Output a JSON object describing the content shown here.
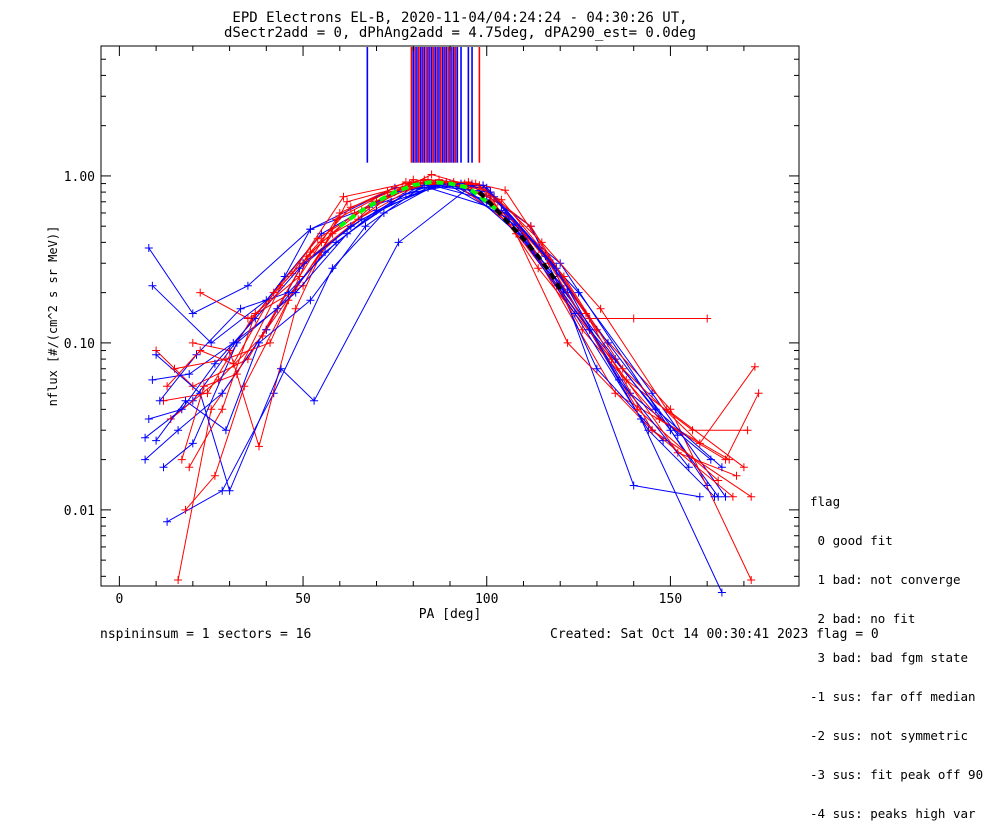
{
  "title_line1": "EPD Electrons EL-B, 2020-11-04/04:24:24 - 04:30:26 UT,",
  "title_line2": "dSectr2add = 0, dPhAng2add = 4.75deg, dPA290_est=   0.0deg",
  "footer_left": "nspininsum =  1  sectors = 16",
  "footer_right": "Created: Sat Oct 14 00:30:41 2023   flag = 0",
  "flag_legend": {
    "title": "flag",
    "items": [
      " 0 good fit",
      " 1 bad: not converge",
      " 2 bad: no fit",
      " 3 bad: bad fgm state",
      "-1 sus: far off median",
      "-2 sus: not symmetric",
      "-3 sus: fit peak off 90",
      "-4 sus: peaks high var"
    ]
  },
  "colors": {
    "red": "#ff0000",
    "blue": "#0000ff",
    "green": "#00ff00",
    "black": "#000000",
    "purple": "#8b008b"
  },
  "chart_data": {
    "type": "line",
    "xlabel": "PA [deg]",
    "ylabel": "nflux [#/(cm^2 s sr MeV)]",
    "xlim": [
      -5,
      185
    ],
    "ylim": [
      0.0035,
      6.0
    ],
    "yscale": "log",
    "xticks": [
      0,
      50,
      100,
      150
    ],
    "xtick_labels": [
      "0",
      "50",
      "100",
      "150"
    ],
    "yticks": [
      0.01,
      0.1,
      1.0
    ],
    "ytick_labels": [
      "0.01",
      "0.10",
      "1.00"
    ],
    "peak_markers": {
      "blue_x": [
        67.5,
        80,
        81,
        82,
        83,
        84,
        85,
        86,
        87,
        88,
        89,
        90,
        91,
        92,
        93,
        95,
        96
      ],
      "red_x": [
        79.5,
        81.5,
        83.5,
        85.5,
        87.5,
        89.5,
        91.5,
        98
      ],
      "purple_x": [
        80.5,
        82.5,
        84.5,
        86.5,
        88.5,
        90.5
      ]
    },
    "fit_curves": [
      {
        "color": "green",
        "x": [
          60,
          65,
          70,
          75,
          80,
          85,
          90,
          95,
          100,
          103
        ],
        "y": [
          0.5,
          0.6,
          0.7,
          0.8,
          0.88,
          0.92,
          0.9,
          0.85,
          0.7,
          0.62
        ]
      },
      {
        "color": "black",
        "x": [
          98,
          102,
          106,
          110,
          114,
          118,
          120
        ],
        "y": [
          0.8,
          0.65,
          0.52,
          0.42,
          0.33,
          0.25,
          0.21
        ]
      }
    ],
    "sample_series": [
      {
        "color": "blue",
        "x": [
          8,
          20,
          35,
          52,
          68,
          85,
          100,
          118,
          135,
          150,
          163
        ],
        "y": [
          0.37,
          0.15,
          0.22,
          0.48,
          0.65,
          0.88,
          0.72,
          0.25,
          0.08,
          0.03,
          0.012
        ]
      },
      {
        "color": "blue",
        "x": [
          7,
          20,
          30,
          45,
          52,
          75,
          90,
          100,
          120,
          160
        ],
        "y": [
          0.027,
          0.045,
          0.09,
          0.25,
          0.48,
          0.85,
          0.9,
          0.7,
          0.3,
          0.014
        ]
      },
      {
        "color": "red",
        "x": [
          16,
          25,
          40,
          55,
          70,
          85,
          100,
          115,
          130,
          150,
          172
        ],
        "y": [
          0.0038,
          0.04,
          0.12,
          0.35,
          0.7,
          1.02,
          0.82,
          0.35,
          0.12,
          0.04,
          0.0038
        ]
      },
      {
        "color": "red",
        "x": [
          22,
          35,
          50,
          62,
          80,
          95,
          105,
          128,
          140,
          160
        ],
        "y": [
          0.2,
          0.14,
          0.22,
          0.7,
          0.9,
          0.92,
          0.82,
          0.14,
          0.14,
          0.14
        ]
      },
      {
        "color": "blue",
        "x": [
          9,
          25,
          40,
          55,
          75,
          90,
          105,
          125,
          145,
          165
        ],
        "y": [
          0.22,
          0.1,
          0.18,
          0.45,
          0.8,
          0.9,
          0.6,
          0.2,
          0.05,
          0.012
        ]
      },
      {
        "color": "red",
        "x": [
          10,
          20,
          35,
          50,
          65,
          80,
          92,
          110,
          135,
          165,
          174
        ],
        "y": [
          0.09,
          0.055,
          0.08,
          0.3,
          0.55,
          0.95,
          0.88,
          0.45,
          0.05,
          0.02,
          0.05
        ]
      },
      {
        "color": "blue",
        "x": [
          13,
          28,
          42,
          58,
          72,
          86,
          100,
          118,
          140,
          158
        ],
        "y": [
          0.0085,
          0.013,
          0.05,
          0.28,
          0.6,
          0.88,
          0.85,
          0.3,
          0.014,
          0.012
        ]
      },
      {
        "color": "red",
        "x": [
          20,
          30,
          38,
          48,
          60,
          78,
          96,
          108,
          122,
          145,
          172
        ],
        "y": [
          0.1,
          0.09,
          0.024,
          0.16,
          0.6,
          0.92,
          0.9,
          0.45,
          0.1,
          0.03,
          0.012
        ]
      },
      {
        "color": "blue",
        "x": [
          10,
          22,
          30,
          44,
          53,
          76,
          96,
          112,
          130,
          148
        ],
        "y": [
          0.085,
          0.05,
          0.013,
          0.07,
          0.045,
          0.4,
          0.88,
          0.5,
          0.07,
          0.026
        ]
      },
      {
        "color": "red",
        "x": [
          18,
          26,
          34,
          46,
          58,
          82,
          99,
          114,
          134,
          152,
          168
        ],
        "y": [
          0.01,
          0.016,
          0.055,
          0.18,
          0.45,
          0.9,
          0.87,
          0.28,
          0.08,
          0.022,
          0.016
        ]
      },
      {
        "color": "blue",
        "x": [
          7,
          16,
          28,
          40,
          50,
          66,
          84,
          104,
          122,
          142,
          164
        ],
        "y": [
          0.02,
          0.03,
          0.05,
          0.12,
          0.3,
          0.55,
          0.85,
          0.62,
          0.2,
          0.035,
          0.0032
        ]
      },
      {
        "color": "red",
        "x": [
          12,
          24,
          36,
          47,
          61,
          83,
          98,
          119,
          138,
          156,
          171
        ],
        "y": [
          0.045,
          0.05,
          0.14,
          0.26,
          0.75,
          0.95,
          0.88,
          0.22,
          0.06,
          0.03,
          0.03
        ]
      },
      {
        "color": "blue",
        "x": [
          9,
          19,
          31,
          43,
          56,
          70,
          88,
          102,
          121,
          139,
          161
        ],
        "y": [
          0.06,
          0.065,
          0.1,
          0.16,
          0.35,
          0.62,
          0.9,
          0.75,
          0.21,
          0.05,
          0.02
        ]
      },
      {
        "color": "red",
        "x": [
          14,
          27,
          39,
          51,
          64,
          79,
          94,
          109,
          126,
          147,
          166
        ],
        "y": [
          0.035,
          0.06,
          0.11,
          0.33,
          0.6,
          0.9,
          0.9,
          0.5,
          0.12,
          0.035,
          0.02
        ]
      },
      {
        "color": "blue",
        "x": [
          11,
          21,
          33,
          46,
          59,
          74,
          89,
          106,
          124,
          144,
          162
        ],
        "y": [
          0.045,
          0.085,
          0.16,
          0.2,
          0.4,
          0.7,
          0.9,
          0.55,
          0.15,
          0.03,
          0.012
        ]
      },
      {
        "color": "red",
        "x": [
          15,
          29,
          41,
          52,
          63,
          77,
          91,
          103,
          117,
          141,
          163
        ],
        "y": [
          0.07,
          0.08,
          0.1,
          0.35,
          0.65,
          0.85,
          0.92,
          0.7,
          0.3,
          0.04,
          0.015
        ]
      },
      {
        "color": "blue",
        "x": [
          8,
          17,
          26,
          37,
          49,
          63,
          81,
          99,
          116,
          133,
          152
        ],
        "y": [
          0.035,
          0.04,
          0.075,
          0.14,
          0.28,
          0.5,
          0.85,
          0.88,
          0.33,
          0.1,
          0.028
        ]
      },
      {
        "color": "red",
        "x": [
          17,
          23,
          32,
          44,
          55,
          69,
          87,
          101,
          115,
          131,
          149,
          170
        ],
        "y": [
          0.02,
          0.055,
          0.065,
          0.22,
          0.4,
          0.7,
          0.95,
          0.8,
          0.4,
          0.16,
          0.04,
          0.018
        ]
      },
      {
        "color": "blue",
        "x": [
          12,
          20,
          32,
          48,
          62,
          78,
          93,
          110,
          128,
          146,
          164
        ],
        "y": [
          0.018,
          0.025,
          0.1,
          0.2,
          0.45,
          0.78,
          0.9,
          0.42,
          0.12,
          0.04,
          0.018
        ]
      },
      {
        "color": "red",
        "x": [
          19,
          28,
          37,
          49,
          59,
          73,
          89,
          104,
          121,
          137,
          158,
          173
        ],
        "y": [
          0.018,
          0.04,
          0.15,
          0.25,
          0.55,
          0.8,
          0.92,
          0.72,
          0.25,
          0.07,
          0.025,
          0.072
        ]
      },
      {
        "color": "blue",
        "x": [
          10,
          18,
          29,
          38,
          52,
          67,
          83,
          101,
          119,
          136,
          155
        ],
        "y": [
          0.026,
          0.045,
          0.03,
          0.1,
          0.18,
          0.5,
          0.88,
          0.8,
          0.28,
          0.06,
          0.018
        ]
      },
      {
        "color": "red",
        "x": [
          13,
          22,
          31,
          42,
          54,
          66,
          84,
          97,
          112,
          127,
          145,
          167
        ],
        "y": [
          0.055,
          0.09,
          0.075,
          0.2,
          0.42,
          0.62,
          0.95,
          0.9,
          0.5,
          0.15,
          0.03,
          0.012
        ]
      }
    ]
  }
}
